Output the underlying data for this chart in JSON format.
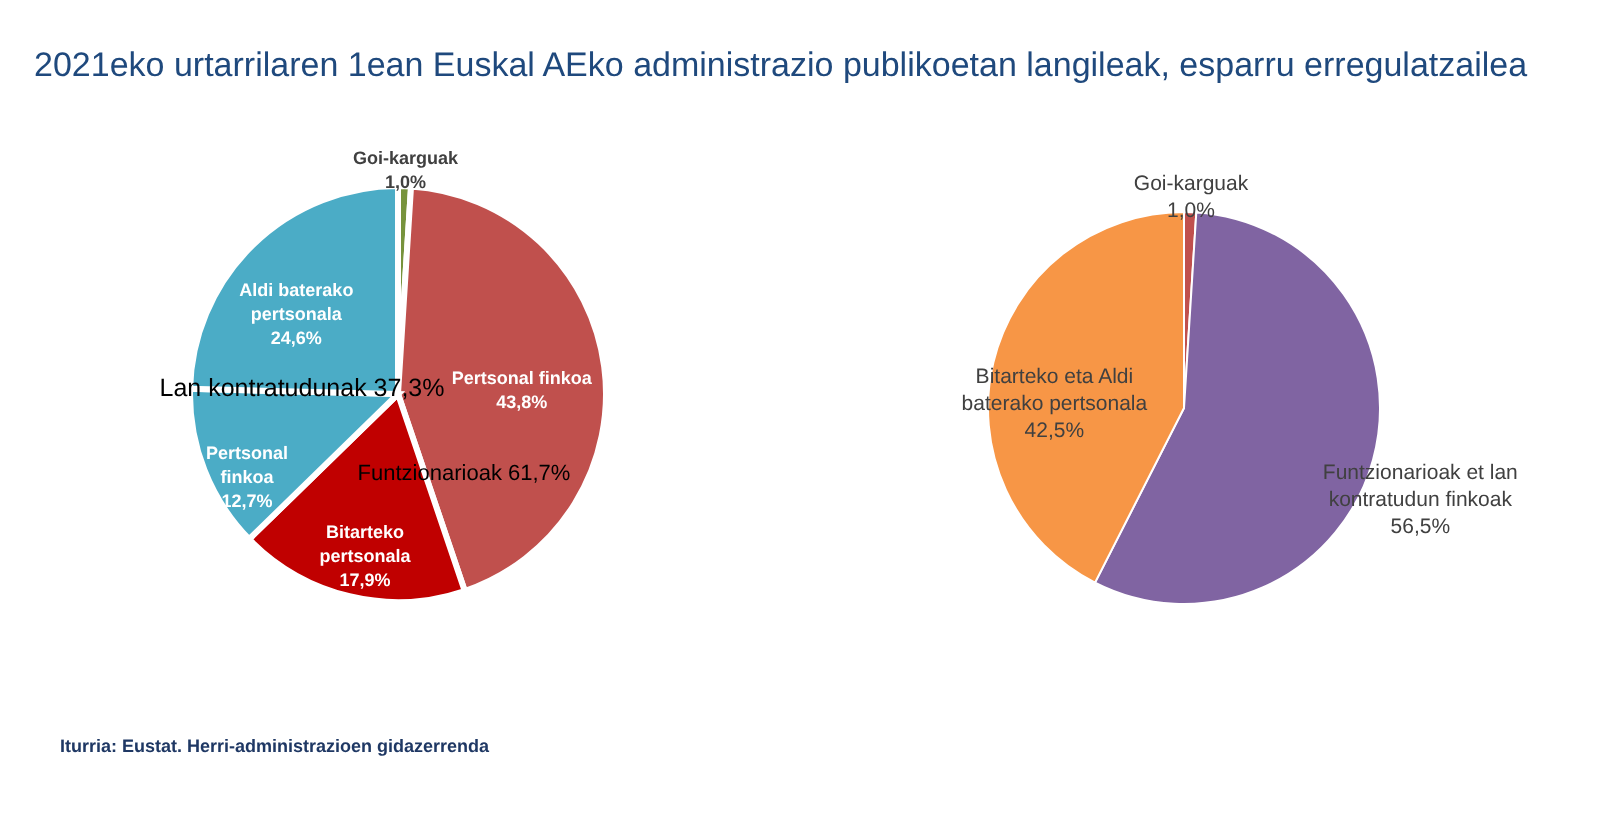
{
  "chart_data": [
    {
      "type": "pie",
      "title": "2021eko urtarrilaren 1ean Euskal AEko administrazio publikoetan langileak, esparru erregulatzailea",
      "categories": [
        "Goi-karguak",
        "Pertsonal finkoa",
        "Bitarteko pertsonala",
        "Pertsonal finkoa",
        "Aldi baterako pertsonala"
      ],
      "values": [
        1.0,
        43.8,
        17.9,
        12.7,
        24.6
      ],
      "value_labels": [
        "1,0%",
        "43,8%",
        "17,9%",
        "12,7%",
        "24,6%"
      ],
      "colors": [
        "#77933c",
        "#c0504d",
        "#c00000",
        "#4bacc6",
        "#4bacc6"
      ],
      "legend": false,
      "annotations": [
        "Lan kontratudunak 37,3%",
        "Funtzionarioak 61,7%",
        "Iturria: Eustat. Herri-administrazioen gidazerrenda"
      ]
    },
    {
      "type": "pie",
      "categories": [
        "Goi-karguak",
        "Funtzionarioak et lan kontratudun finkoak",
        "Bitarteko eta Aldi baterako pertsonala"
      ],
      "values": [
        1.0,
        56.5,
        42.5
      ],
      "value_labels": [
        "1,0%",
        "56,5%",
        "42,5%"
      ],
      "colors": [
        "#c0504d",
        "#8064a2",
        "#f79646"
      ],
      "legend": false
    }
  ]
}
